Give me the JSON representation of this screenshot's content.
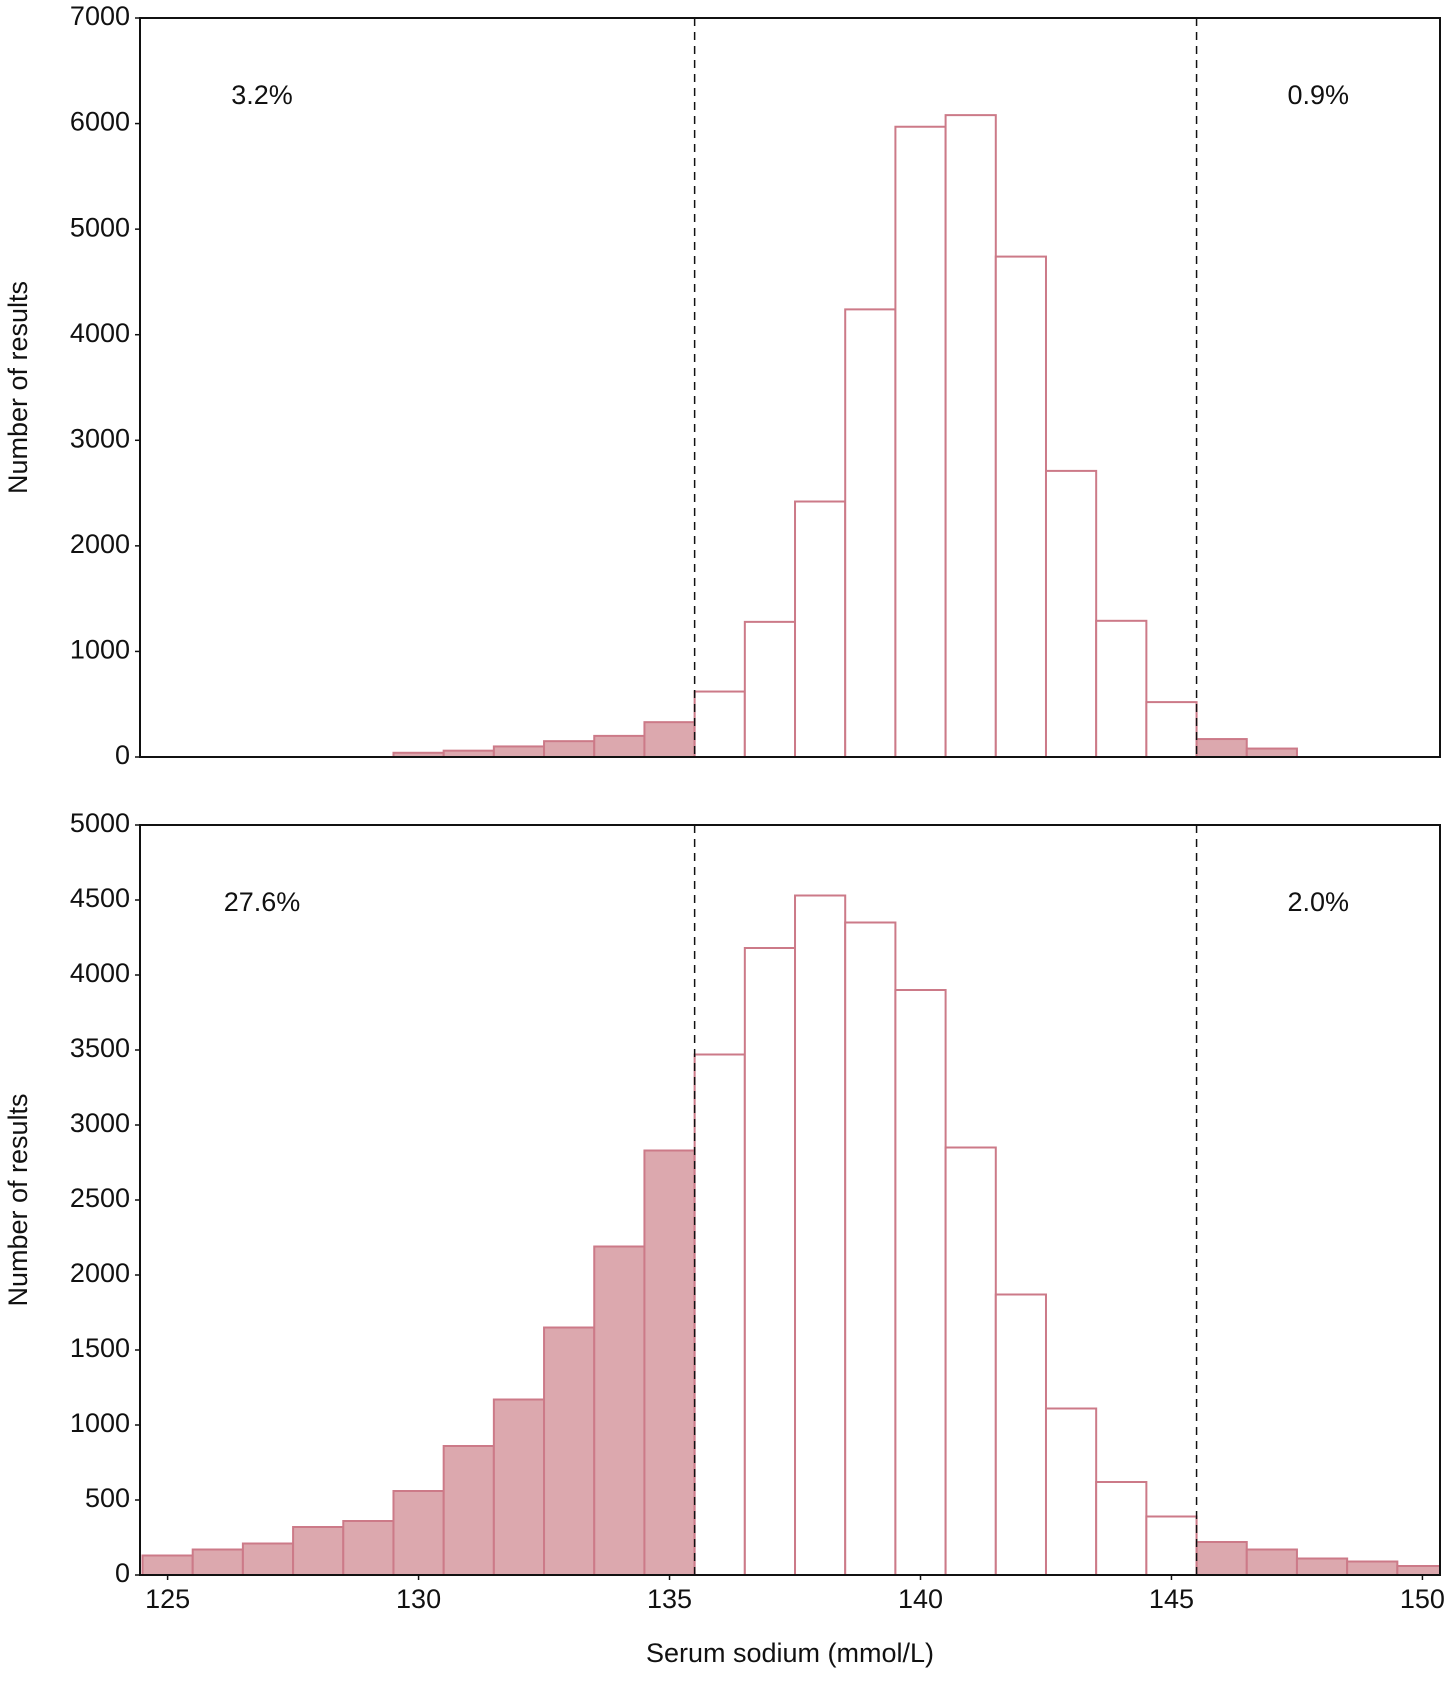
{
  "chart_data": [
    {
      "type": "histogram",
      "ylabel": "Number of results",
      "bins": [
        124.5,
        125.5,
        126.5,
        127.5,
        128.5,
        129.5,
        130.5,
        131.5,
        132.5,
        133.5,
        134.5,
        135.5,
        136.5,
        137.5,
        138.5,
        139.5,
        140.5,
        141.5,
        142.5,
        143.5,
        144.5,
        145.5,
        146.5,
        147.5,
        148.5,
        149.5,
        150.5
      ],
      "values": [
        0,
        0,
        0,
        0,
        0,
        40,
        60,
        100,
        150,
        200,
        330,
        620,
        1280,
        2420,
        4240,
        5970,
        6080,
        4740,
        2710,
        1290,
        520,
        170,
        80,
        0,
        0,
        0
      ],
      "xlim": [
        124.45,
        150.35
      ],
      "ylim": [
        0,
        7000
      ],
      "yticks": [
        0,
        1000,
        2000,
        3000,
        4000,
        5000,
        6000,
        7000
      ],
      "reference_lines": [
        135.5,
        145.5
      ],
      "annotations": [
        "3.2%",
        "0.9%"
      ],
      "color": "#dca8ae",
      "edge_color": "#cc7a88"
    },
    {
      "type": "histogram",
      "ylabel": "Number of results",
      "xlabel": "Serum sodium (mmol/L)",
      "bins": [
        124.5,
        125.5,
        126.5,
        127.5,
        128.5,
        129.5,
        130.5,
        131.5,
        132.5,
        133.5,
        134.5,
        135.5,
        136.5,
        137.5,
        138.5,
        139.5,
        140.5,
        141.5,
        142.5,
        143.5,
        144.5,
        145.5,
        146.5,
        147.5,
        148.5,
        149.5,
        150.5
      ],
      "values": [
        130,
        170,
        210,
        320,
        360,
        560,
        860,
        1170,
        1650,
        2190,
        2830,
        3470,
        4180,
        4530,
        4350,
        3900,
        2850,
        1870,
        1110,
        620,
        390,
        220,
        170,
        110,
        90,
        60
      ],
      "xlim": [
        124.45,
        150.35
      ],
      "xticks": [
        125,
        130,
        135,
        140,
        145,
        150
      ],
      "ylim": [
        0,
        5000
      ],
      "yticks": [
        0,
        500,
        1000,
        1500,
        2000,
        2500,
        3000,
        3500,
        4000,
        4500,
        5000
      ],
      "reference_lines": [
        135.5,
        145.5
      ],
      "annotations": [
        "27.6%",
        "2.0%"
      ],
      "color": "#dca8ae",
      "edge_color": "#cc7a88"
    }
  ]
}
